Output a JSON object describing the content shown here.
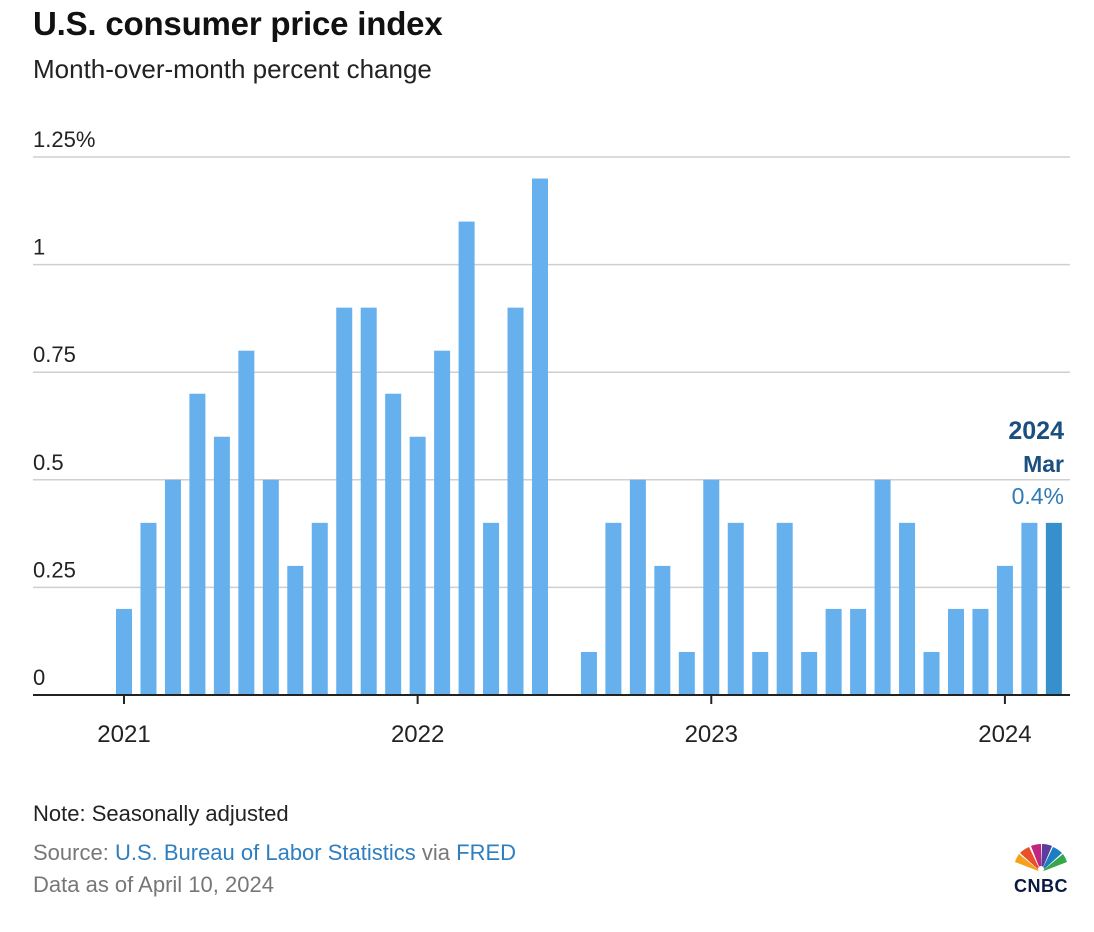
{
  "header": {
    "title": "U.S. consumer price index",
    "subtitle": "Month-over-month percent change"
  },
  "chart_data": {
    "type": "bar",
    "title": "U.S. consumer price index",
    "subtitle": "Month-over-month percent change",
    "ylim": [
      0,
      1.25
    ],
    "y_ticks": [
      {
        "value": 0,
        "label": "0"
      },
      {
        "value": 0.25,
        "label": "0.25"
      },
      {
        "value": 0.5,
        "label": "0.5"
      },
      {
        "value": 0.75,
        "label": "0.75"
      },
      {
        "value": 1.0,
        "label": "1"
      },
      {
        "value": 1.25,
        "label": "1.25%"
      }
    ],
    "x_ticks": [
      {
        "index": 0,
        "label": "2021"
      },
      {
        "index": 12,
        "label": "2022"
      },
      {
        "index": 24,
        "label": "2023"
      },
      {
        "index": 36,
        "label": "2024"
      }
    ],
    "categories": [
      "2021-01",
      "2021-02",
      "2021-03",
      "2021-04",
      "2021-05",
      "2021-06",
      "2021-07",
      "2021-08",
      "2021-09",
      "2021-10",
      "2021-11",
      "2021-12",
      "2022-01",
      "2022-02",
      "2022-03",
      "2022-04",
      "2022-05",
      "2022-06",
      "2022-07",
      "2022-08",
      "2022-09",
      "2022-10",
      "2022-11",
      "2022-12",
      "2023-01",
      "2023-02",
      "2023-03",
      "2023-04",
      "2023-05",
      "2023-06",
      "2023-07",
      "2023-08",
      "2023-09",
      "2023-10",
      "2023-11",
      "2023-12",
      "2024-01",
      "2024-02",
      "2024-03"
    ],
    "values": [
      0.2,
      0.4,
      0.5,
      0.7,
      0.6,
      0.8,
      0.5,
      0.3,
      0.4,
      0.9,
      0.9,
      0.7,
      0.6,
      0.8,
      1.1,
      0.4,
      0.9,
      1.2,
      0.0,
      0.1,
      0.4,
      0.5,
      0.3,
      0.1,
      0.5,
      0.4,
      0.1,
      0.4,
      0.1,
      0.2,
      0.2,
      0.5,
      0.4,
      0.1,
      0.2,
      0.2,
      0.3,
      0.4,
      0.4
    ],
    "grid": true,
    "colors": {
      "bar": "#66b0ee",
      "highlight": "#3790cc",
      "label_dark": "#1a4f80",
      "label_value": "#2e7bb8",
      "grid": "#cfcfcf",
      "axis": "#222222"
    },
    "annotation": {
      "year": "2024",
      "month": "Mar",
      "value": "0.4%"
    }
  },
  "footer": {
    "note": "Note: Seasonally adjusted",
    "source_prefix": "Source: ",
    "source_bls": "U.S. Bureau of Labor Statistics",
    "source_via": " via ",
    "source_fred": "FRED",
    "as_of": "Data as of April 10, 2024",
    "logo": "CNBC"
  }
}
